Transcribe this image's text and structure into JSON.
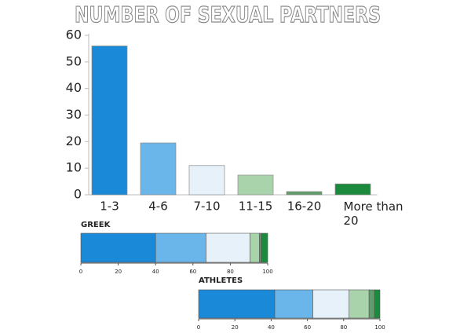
{
  "chart_data": [
    {
      "type": "bar",
      "title": "NUMBER OF SEXUAL PARTNERS",
      "categories": [
        "1-3",
        "4-6",
        "7-10",
        "11-15",
        "16-20",
        "More than 20"
      ],
      "values": [
        56,
        19.5,
        11,
        7.4,
        1.2,
        4.1
      ],
      "colors": [
        "#1a8ad8",
        "#6ab6ea",
        "#e6f1fa",
        "#a9d3aa",
        "#5f9e6c",
        "#1b8a3c"
      ],
      "ylim": [
        0,
        60
      ],
      "yticks": [
        0,
        10,
        20,
        30,
        40,
        50,
        60
      ]
    },
    {
      "type": "stacked_bar",
      "title": "GREEK",
      "values": [
        40,
        27,
        23.5,
        5,
        1,
        3.5
      ],
      "colors": [
        "#1a8ad8",
        "#6ab6ea",
        "#e6f1fa",
        "#a9d3aa",
        "#5f9e6c",
        "#1b8a3c"
      ],
      "xlim": [
        0,
        100
      ],
      "xticks": [
        0,
        20,
        40,
        60,
        80,
        100
      ]
    },
    {
      "type": "stacked_bar",
      "title": "ATHLETES",
      "values": [
        42,
        21,
        20,
        11,
        3,
        3
      ],
      "colors": [
        "#1a8ad8",
        "#6ab6ea",
        "#e6f1fa",
        "#a9d3aa",
        "#5f9e6c",
        "#1b8a3c"
      ],
      "xlim": [
        0,
        100
      ],
      "xticks": [
        0,
        20,
        40,
        60,
        80,
        100
      ]
    }
  ]
}
